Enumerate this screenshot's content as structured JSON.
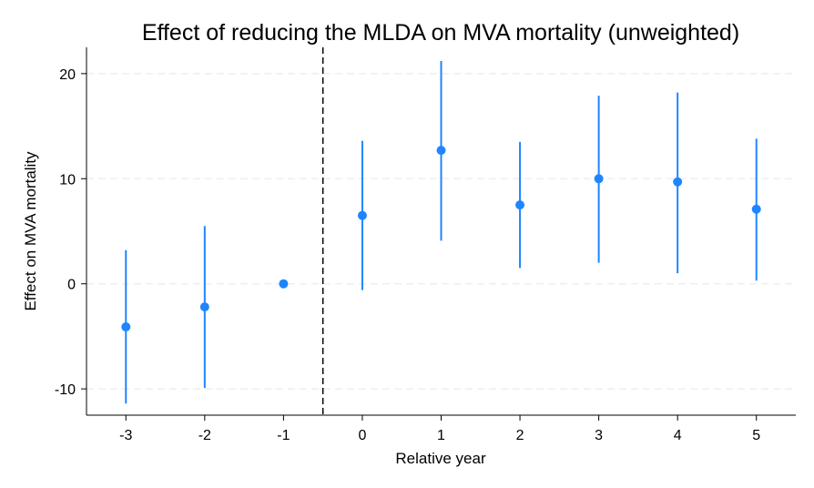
{
  "chart_data": {
    "type": "scatter",
    "title": "Effect of reducing the MLDA on MVA mortality (unweighted)",
    "xlabel": "Relative year",
    "ylabel": "Effect on MVA mortality",
    "xlim": [
      -3.5,
      5.5
    ],
    "ylim": [
      -12.5,
      22.5
    ],
    "x_ticks": [
      -3,
      -2,
      -1,
      0,
      1,
      2,
      3,
      4,
      5
    ],
    "x_tick_labels": [
      "-3",
      "-2",
      "-1",
      "0",
      "1",
      "2",
      "3",
      "4",
      "5"
    ],
    "y_ticks": [
      -10,
      0,
      10,
      20
    ],
    "y_tick_labels": [
      "-10",
      "0",
      "10",
      "20"
    ],
    "grid": "horizontal dashed",
    "reference_line_x": -0.5,
    "color": "#1f85ff",
    "series": [
      {
        "x": [
          -3,
          -2,
          -1,
          0,
          1,
          2,
          3,
          4,
          5
        ],
        "estimate": [
          -4.1,
          -2.2,
          0.0,
          6.5,
          12.7,
          7.5,
          10.0,
          9.7,
          7.1
        ],
        "ci_lower": [
          -11.4,
          -9.9,
          0.0,
          -0.6,
          4.1,
          1.5,
          2.0,
          1.0,
          0.3
        ],
        "ci_upper": [
          3.2,
          5.5,
          0.0,
          13.6,
          21.2,
          13.5,
          17.9,
          18.2,
          13.8
        ]
      }
    ]
  }
}
